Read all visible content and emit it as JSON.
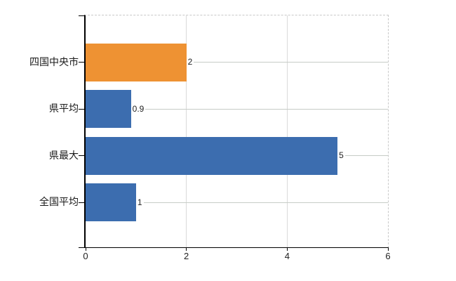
{
  "chart_data": {
    "type": "bar",
    "orientation": "horizontal",
    "title": "",
    "categories": [
      "四国中央市",
      "県平均",
      "県最大",
      "全国平均"
    ],
    "values": [
      2,
      0.9,
      5,
      1
    ],
    "value_labels": [
      "2",
      "0.9",
      "5",
      "1"
    ],
    "bar_colors": [
      "#ee9233",
      "#3c6daf",
      "#3c6daf",
      "#3c6daf"
    ],
    "xlim": [
      0,
      6
    ],
    "x_ticks": [
      0,
      2,
      4,
      6
    ],
    "x_tick_labels": [
      "0",
      "2",
      "4",
      "6"
    ],
    "xlabel": "",
    "ylabel": "",
    "grid": true,
    "legend": false
  },
  "colors": {
    "highlight_bar": "#ee9233",
    "default_bar": "#3c6daf",
    "gridline": "#dadada",
    "plot_border_dashed": "#c9c9c9",
    "leader_line": "#c6ccc6",
    "axis": "#000000",
    "text": "#222222",
    "background": "#ffffff"
  }
}
